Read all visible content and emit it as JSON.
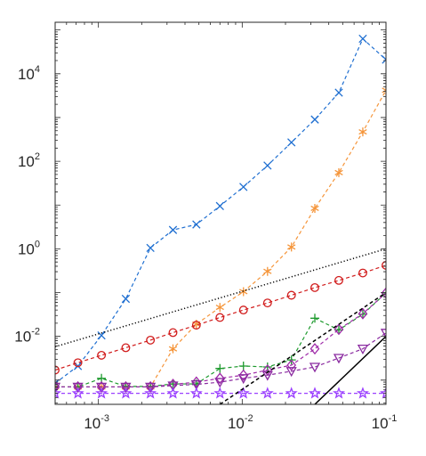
{
  "chart_data": {
    "type": "line",
    "title": "",
    "xlabel": "",
    "ylabel": "",
    "xscale": "log",
    "yscale": "log",
    "xlim": [
      0.0005,
      0.1
    ],
    "ylim": [
      0.00028,
      150000
    ],
    "grid": false,
    "legend": "none",
    "x_ticks": [
      {
        "base": "10",
        "exp": "-3",
        "value": 0.001
      },
      {
        "base": "10",
        "exp": "-2",
        "value": 0.01
      },
      {
        "base": "10",
        "exp": "-1",
        "value": 0.1
      }
    ],
    "y_ticks": [
      {
        "base": "10",
        "exp": "-2",
        "value": 0.01
      },
      {
        "base": "10",
        "exp": "0",
        "value": 1
      },
      {
        "base": "10",
        "exp": "2",
        "value": 100
      },
      {
        "base": "10",
        "exp": "4",
        "value": 10000
      }
    ],
    "series": [
      {
        "color": "#1f6fd1",
        "marker": "x",
        "dash": "dashed",
        "x": [
          0.0005,
          0.00072,
          0.00105,
          0.00155,
          0.0023,
          0.0033,
          0.0048,
          0.007,
          0.0102,
          0.015,
          0.022,
          0.032,
          0.047,
          0.069,
          0.1
        ],
        "y": [
          0.00085,
          0.0021,
          0.0105,
          0.072,
          1.05,
          2.7,
          3.6,
          9.5,
          26,
          80,
          270,
          900,
          3700,
          63000,
          21000
        ]
      },
      {
        "color": "#f5953a",
        "marker": "star6",
        "dash": "dashed",
        "x": [
          0.0005,
          0.00072,
          0.00105,
          0.00155,
          0.0023,
          0.0033,
          0.0048,
          0.007,
          0.0102,
          0.015,
          0.022,
          0.032,
          0.047,
          0.069,
          0.1
        ],
        "y": [
          0.0007,
          0.0007,
          0.0007,
          0.0007,
          0.0007,
          0.0052,
          0.019,
          0.046,
          0.105,
          0.305,
          1.1,
          8.4,
          55,
          470,
          4200
        ]
      },
      {
        "color": "#d11c1c",
        "marker": "circle",
        "dash": "dashed",
        "x": [
          0.0005,
          0.00072,
          0.00105,
          0.00155,
          0.0023,
          0.0033,
          0.0048,
          0.007,
          0.0102,
          0.015,
          0.022,
          0.032,
          0.047,
          0.069,
          0.1
        ],
        "y": [
          0.0017,
          0.0025,
          0.0037,
          0.0055,
          0.0082,
          0.0122,
          0.018,
          0.027,
          0.04,
          0.058,
          0.087,
          0.13,
          0.19,
          0.28,
          0.42
        ]
      },
      {
        "color": "#1e9a2e",
        "marker": "plus",
        "dash": "dashed",
        "x": [
          0.0005,
          0.00072,
          0.00105,
          0.00155,
          0.0023,
          0.0033,
          0.0048,
          0.007,
          0.0102,
          0.015,
          0.022,
          0.032,
          0.047,
          0.069,
          0.1
        ],
        "y": [
          0.0007,
          0.0007,
          0.0011,
          0.00072,
          0.00072,
          0.00082,
          0.00082,
          0.00185,
          0.0021,
          0.002,
          0.0029,
          0.026,
          0.014,
          0.032,
          0.098
        ]
      },
      {
        "color": "#9f2aa8",
        "marker": "diamond",
        "dash": "dashed",
        "x": [
          0.0005,
          0.00072,
          0.00105,
          0.00155,
          0.0023,
          0.0033,
          0.0048,
          0.007,
          0.0102,
          0.015,
          0.022,
          0.032,
          0.047,
          0.069,
          0.1
        ],
        "y": [
          0.0007,
          0.0007,
          0.0007,
          0.0007,
          0.0007,
          0.0008,
          0.0009,
          0.0011,
          0.0013,
          0.0017,
          0.0022,
          0.0052,
          0.0145,
          0.033,
          0.098
        ]
      },
      {
        "color": "#8a2aa0",
        "marker": "triangle-down",
        "dash": "dashed",
        "x": [
          0.0005,
          0.00072,
          0.00105,
          0.00155,
          0.0023,
          0.0033,
          0.0048,
          0.007,
          0.0102,
          0.015,
          0.022,
          0.032,
          0.047,
          0.069,
          0.1
        ],
        "y": [
          0.0007,
          0.0007,
          0.0007,
          0.0007,
          0.0007,
          0.00075,
          0.0008,
          0.0009,
          0.0011,
          0.0013,
          0.0016,
          0.002,
          0.0032,
          0.0052,
          0.012
        ]
      },
      {
        "color": "#9b40ff",
        "marker": "star5",
        "dash": "dashed",
        "x": [
          0.0005,
          0.00072,
          0.00105,
          0.00155,
          0.0023,
          0.0033,
          0.0048,
          0.007,
          0.0102,
          0.015,
          0.022,
          0.032,
          0.047,
          0.069,
          0.1
        ],
        "y": [
          0.0005,
          0.0005,
          0.0005,
          0.0005,
          0.0005,
          0.0005,
          0.0005,
          0.0005,
          0.0005,
          0.0005,
          0.0005,
          0.0005,
          0.0005,
          0.0005,
          0.0005
        ]
      },
      {
        "color": "#000000",
        "marker": "none",
        "dash": "dotted",
        "x": [
          0.0005,
          0.1
        ],
        "y": [
          0.0058,
          1.0
        ]
      },
      {
        "color": "#000000",
        "marker": "none",
        "dash": "dashed",
        "x": [
          0.007,
          0.1
        ],
        "y": [
          0.00028,
          0.1
        ]
      },
      {
        "color": "#000000",
        "marker": "none",
        "dash": "solid",
        "x": [
          0.032,
          0.1
        ],
        "y": [
          0.00028,
          0.01
        ]
      }
    ]
  }
}
